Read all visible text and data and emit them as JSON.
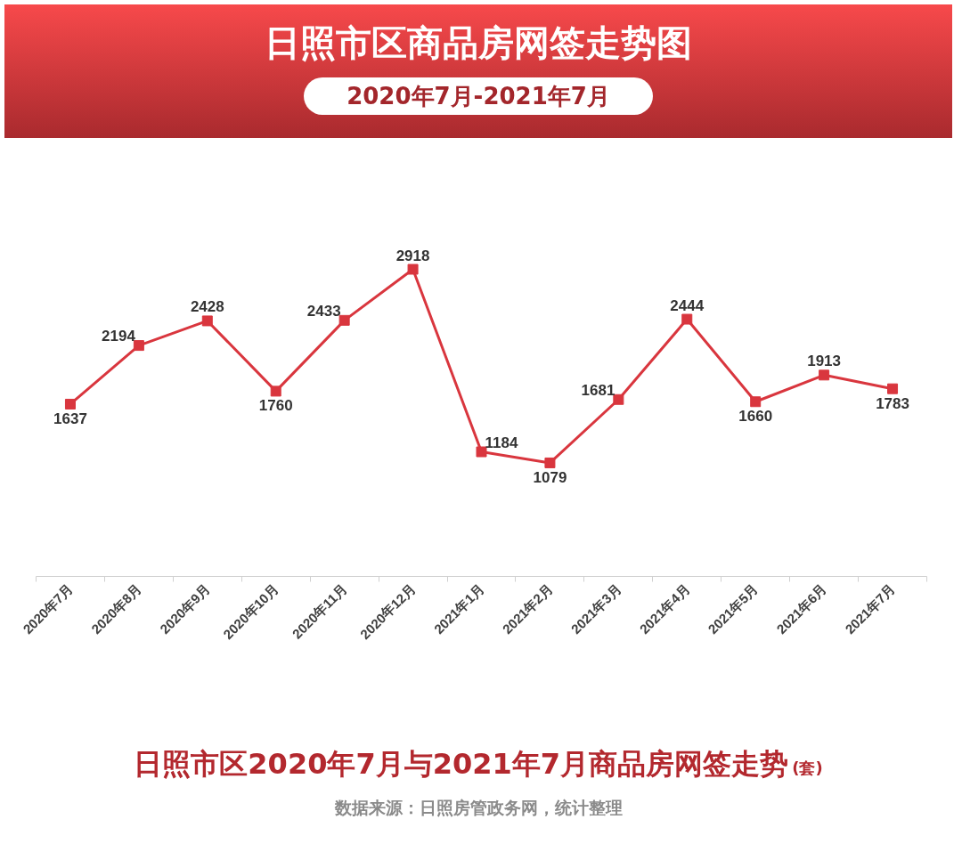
{
  "chart_data": {
    "type": "line",
    "title": "日照市区商品房网签走势图",
    "subtitle": "2020年7月-2021年7月",
    "categories": [
      "2020年7月",
      "2020年8月",
      "2020年9月",
      "2020年10月",
      "2020年11月",
      "2020年12月",
      "2021年1月",
      "2021年2月",
      "2021年3月",
      "2021年4月",
      "2021年5月",
      "2021年6月",
      "2021年7月"
    ],
    "series": [
      {
        "color": "#d9363e",
        "values": [
          1637,
          2194,
          2428,
          1760,
          2433,
          2918,
          1184,
          1079,
          1681,
          2444,
          1660,
          1913,
          1783
        ]
      }
    ],
    "data_labels": true,
    "marker": "square",
    "line_style": "solid",
    "grid": false,
    "annotations": [
      "日照市区2020年7月与2021年7月商品房网签走势",
      "(套)",
      "数据来源：日照房管政务网，统计整理"
    ]
  }
}
